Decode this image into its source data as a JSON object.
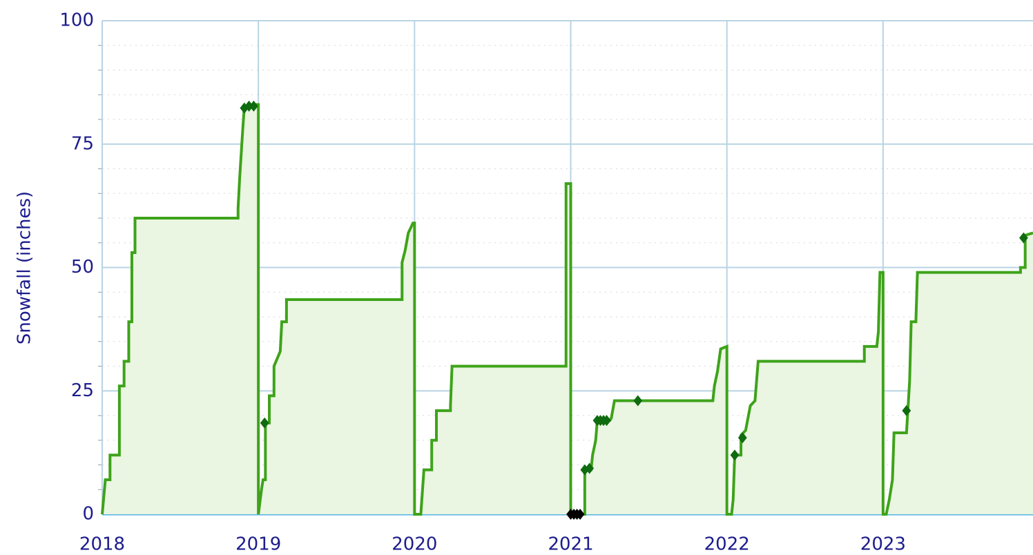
{
  "chart_data": {
    "type": "line",
    "y_label": "Snowfall (inches)",
    "xlim": [
      2018,
      2023.96
    ],
    "ylim": [
      0,
      100
    ],
    "xticks": [
      2018,
      2019,
      2020,
      2021,
      2022,
      2023
    ],
    "yticks": [
      0,
      25,
      50,
      75,
      100
    ],
    "yminorticks": [
      5,
      10,
      15,
      20,
      30,
      35,
      40,
      45,
      55,
      60,
      65,
      70,
      80,
      85,
      90,
      95
    ],
    "grid": true,
    "fill_area": true,
    "series": [
      {
        "color": "#3ea31a",
        "type": "line",
        "x": [
          2018.0,
          2018.02,
          2018.05,
          2018.05,
          2018.11,
          2018.11,
          2018.14,
          2018.14,
          2018.17,
          2018.17,
          2018.19,
          2018.19,
          2018.21,
          2018.21,
          2018.87,
          2018.87,
          2018.88,
          2018.9,
          2018.91,
          2018.98,
          2019.0,
          2019.0,
          2019.02,
          2019.03,
          2019.045,
          2019.045,
          2019.07,
          2019.07,
          2019.1,
          2019.1,
          2019.14,
          2019.15,
          2019.18,
          2019.18,
          2019.92,
          2019.92,
          2019.94,
          2019.96,
          2019.99,
          2020.0,
          2020.0,
          2020.04,
          2020.06,
          2020.11,
          2020.11,
          2020.14,
          2020.14,
          2020.23,
          2020.23,
          2020.24,
          2020.97,
          2020.97,
          2021.0,
          2021.0,
          2021.09,
          2021.09,
          2021.13,
          2021.14,
          2021.16,
          2021.17,
          2021.25,
          2021.26,
          2021.28,
          2021.91,
          2021.92,
          2021.94,
          2021.96,
          2022.0,
          2022.0,
          2022.03,
          2022.04,
          2022.05,
          2022.09,
          2022.09,
          2022.12,
          2022.15,
          2022.18,
          2022.2,
          2022.88,
          2022.88,
          2022.96,
          2022.97,
          2022.98,
          2023.0,
          2023.0,
          2023.02,
          2023.04,
          2023.06,
          2023.07,
          2023.15,
          2023.17,
          2023.18,
          2023.21,
          2023.22,
          2023.88,
          2023.88,
          2023.91,
          2023.91,
          2023.96
        ],
        "values": [
          0,
          7,
          7,
          12,
          12,
          26,
          26,
          31,
          31,
          39,
          39,
          53,
          53,
          60,
          60,
          62,
          68,
          78,
          82.5,
          83,
          83,
          0,
          5,
          7,
          7,
          18.5,
          18.5,
          24,
          24,
          30,
          33,
          39,
          39,
          43.5,
          43.5,
          51,
          53.5,
          57,
          59,
          59,
          0,
          0,
          9,
          9,
          15,
          15,
          21,
          21,
          22,
          30,
          30,
          67,
          67,
          0,
          0,
          9,
          9,
          12,
          15,
          19,
          19,
          19.5,
          23,
          23,
          26,
          29,
          33.5,
          34,
          0,
          0,
          3,
          12,
          12,
          16,
          17,
          22,
          23,
          31,
          31,
          34,
          34,
          37,
          49,
          49,
          0,
          0,
          3,
          7,
          16.5,
          16.5,
          27,
          39,
          39,
          49,
          49,
          50,
          50,
          56.5,
          57
        ]
      },
      {
        "color": "#0f6b0f",
        "type": "markers",
        "x": [
          2018.91,
          2018.94,
          2018.97,
          2019.04,
          2021.09,
          2021.12,
          2021.17,
          2021.19,
          2021.21,
          2021.23,
          2021.43,
          2022.05,
          2022.1,
          2023.15,
          2023.9
        ],
        "values": [
          82.3,
          82.7,
          82.7,
          18.5,
          9,
          9.3,
          19,
          19,
          19,
          19,
          23,
          12,
          15.5,
          21,
          56
        ]
      },
      {
        "color": "#000000",
        "type": "markers",
        "x": [
          2021.0,
          2021.02,
          2021.04,
          2021.06
        ],
        "values": [
          0,
          0,
          0,
          0
        ]
      }
    ]
  }
}
